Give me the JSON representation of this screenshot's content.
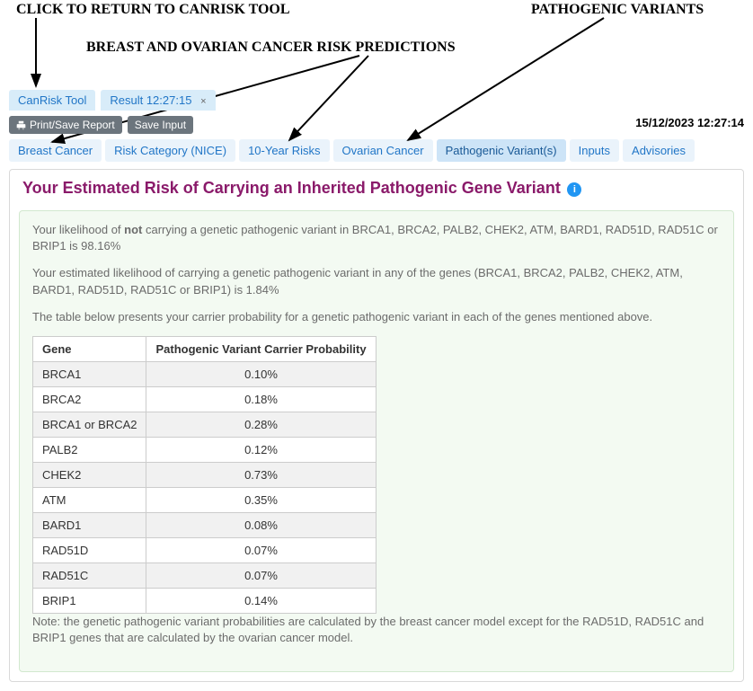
{
  "annotations": {
    "a1": "CLICK TO RETURN TO CANRISK TOOL",
    "a2": "BREAST AND OVARIAN CANCER RISK PREDICTIONS",
    "a3": "PATHOGENIC VARIANTS"
  },
  "top_tabs": {
    "canrisk": "CanRisk Tool",
    "result": "Result 12:27:15",
    "close": "×"
  },
  "toolbar": {
    "print": "Print/Save Report",
    "save": "Save Input",
    "timestamp": "15/12/2023 12:27:14"
  },
  "subtabs": {
    "t0": "Breast Cancer",
    "t1": "Risk Category (NICE)",
    "t2": "10-Year Risks",
    "t3": "Ovarian Cancer",
    "t4": "Pathogenic Variant(s)",
    "t5": "Inputs",
    "t6": "Advisories"
  },
  "panel": {
    "title": "Your Estimated Risk of Carrying an Inherited Pathogenic Gene Variant",
    "info": "i",
    "p1a": "Your likelihood of ",
    "p1b": "not",
    "p1c": " carrying a genetic pathogenic variant in BRCA1, BRCA2, PALB2, CHEK2, ATM, BARD1, RAD51D, RAD51C or BRIP1 is 98.16%",
    "p2": "Your estimated likelihood of carrying a genetic pathogenic variant in any of the genes (BRCA1, BRCA2, PALB2, CHEK2, ATM, BARD1, RAD51D, RAD51C or BRIP1) is 1.84%",
    "p3": "The table below presents your carrier probability for a genetic pathogenic variant in each of the genes mentioned above.",
    "note": "Note: the genetic pathogenic variant probabilities are calculated by the breast cancer model except for the RAD51D, RAD51C and BRIP1 genes that are calculated by the ovarian cancer model."
  },
  "table": {
    "h1": "Gene",
    "h2": "Pathogenic Variant Carrier Probability",
    "rows": [
      {
        "gene": "BRCA1",
        "prob": "0.10%"
      },
      {
        "gene": "BRCA2",
        "prob": "0.18%"
      },
      {
        "gene": "BRCA1 or BRCA2",
        "prob": "0.28%"
      },
      {
        "gene": "PALB2",
        "prob": "0.12%"
      },
      {
        "gene": "CHEK2",
        "prob": "0.73%"
      },
      {
        "gene": "ATM",
        "prob": "0.35%"
      },
      {
        "gene": "BARD1",
        "prob": "0.08%"
      },
      {
        "gene": "RAD51D",
        "prob": "0.07%"
      },
      {
        "gene": "RAD51C",
        "prob": "0.07%"
      },
      {
        "gene": "BRIP1",
        "prob": "0.14%"
      }
    ]
  }
}
